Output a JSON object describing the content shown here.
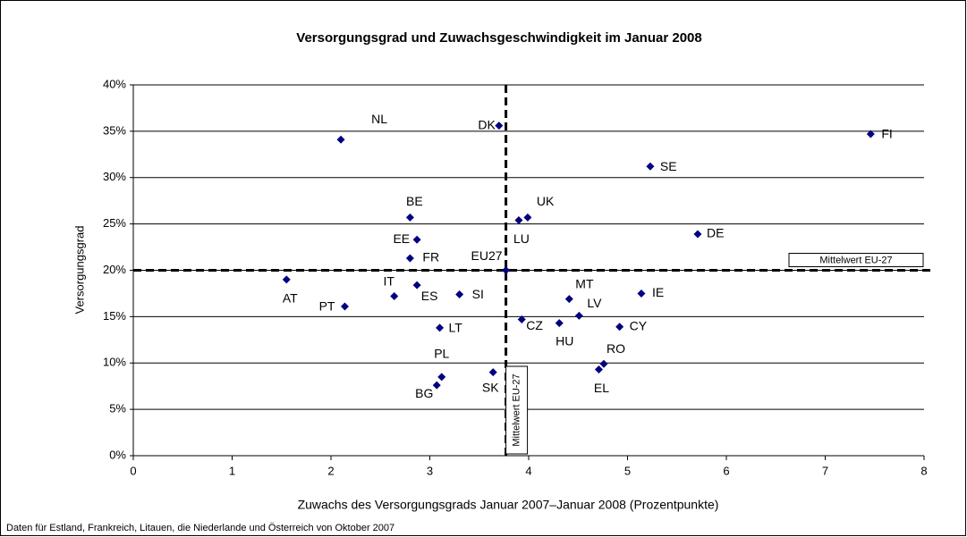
{
  "chart_data": {
    "type": "scatter",
    "title": "Versorgungsgrad und Zuwachsgeschwindigkeit im Januar 2008",
    "x_label": "Zuwachs des Versorgungsgrads Januar 2007–Januar 2008 (Prozentpunkte)",
    "y_label": "Versorgungsgrad",
    "footnote": "Daten für Estland, Frankreich, Litauen, die Niederlande und Österreich von Oktober 2007",
    "point_labels": [
      "NL",
      "DK",
      "FI",
      "SE",
      "BE",
      "UK",
      "LU",
      "EE",
      "DE",
      "FR",
      "EU27",
      "AT",
      "ES",
      "IT",
      "SI",
      "MT",
      "IE",
      "PT",
      "LV",
      "CZ",
      "HU",
      "CY",
      "LT",
      "RO",
      "EL",
      "PL",
      "BG",
      "SK"
    ],
    "x": [
      2.1,
      3.7,
      7.46,
      5.23,
      2.8,
      3.99,
      3.9,
      2.87,
      5.71,
      2.8,
      3.77,
      1.55,
      2.87,
      2.64,
      3.3,
      4.41,
      5.14,
      2.14,
      4.51,
      3.93,
      4.31,
      4.92,
      3.1,
      4.76,
      4.71,
      3.12,
      3.07,
      3.64
    ],
    "values": [
      34.1,
      35.6,
      34.7,
      31.2,
      25.7,
      25.7,
      25.4,
      23.3,
      23.9,
      21.3,
      20.0,
      19.0,
      18.4,
      17.2,
      17.4,
      16.9,
      17.5,
      16.1,
      15.1,
      14.7,
      14.3,
      13.9,
      13.8,
      9.9,
      9.3,
      8.5,
      7.6,
      9.0
    ],
    "color": "#000080",
    "mean_x": 3.77,
    "mean_x_label": "Mittelwert EU-27",
    "mean_y": 20,
    "mean_y_label": "Mittelwert EU-27",
    "xlim": [
      0,
      8
    ],
    "xticks": [
      0,
      1,
      2,
      3,
      4,
      5,
      6,
      7,
      8
    ],
    "ylim": [
      0,
      40
    ],
    "yticks": [
      {
        "value": 0,
        "label": "0%"
      },
      {
        "value": 5,
        "label": "5%"
      },
      {
        "value": 10,
        "label": "10%"
      },
      {
        "value": 15,
        "label": "15%"
      },
      {
        "value": 20,
        "label": "20%"
      },
      {
        "value": 25,
        "label": "25%"
      },
      {
        "value": 30,
        "label": "30%"
      },
      {
        "value": 35,
        "label": "35%"
      },
      {
        "value": 40,
        "label": "40%"
      }
    ],
    "grid": true
  }
}
